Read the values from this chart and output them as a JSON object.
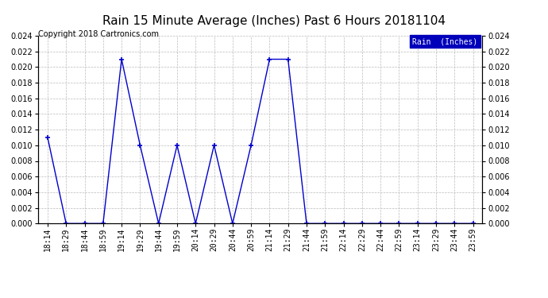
{
  "title": "Rain 15 Minute Average (Inches) Past 6 Hours 20181104",
  "copyright_text": "Copyright 2018 Cartronics.com",
  "legend_label": "Rain  (Inches)",
  "line_color": "#0000cc",
  "legend_bg": "#0000bb",
  "legend_text_color": "#ffffff",
  "background_color": "#ffffff",
  "grid_color": "#bbbbbb",
  "x_labels": [
    "18:14",
    "18:29",
    "18:44",
    "18:59",
    "19:14",
    "19:29",
    "19:44",
    "19:59",
    "20:14",
    "20:29",
    "20:44",
    "20:59",
    "21:14",
    "21:29",
    "21:44",
    "21:59",
    "22:14",
    "22:29",
    "22:44",
    "22:59",
    "23:14",
    "23:29",
    "23:44",
    "23:59"
  ],
  "y_values": [
    0.011,
    0.0,
    0.0,
    0.0,
    0.021,
    0.01,
    0.0,
    0.01,
    0.0,
    0.01,
    0.0,
    0.01,
    0.021,
    0.021,
    0.0,
    0.0,
    0.0,
    0.0,
    0.0,
    0.0,
    0.0,
    0.0,
    0.0,
    0.0
  ],
  "ylim": [
    0.0,
    0.024
  ],
  "yticks": [
    0.0,
    0.002,
    0.004,
    0.006,
    0.008,
    0.01,
    0.012,
    0.014,
    0.016,
    0.018,
    0.02,
    0.022,
    0.024
  ],
  "title_fontsize": 11,
  "copyright_fontsize": 7,
  "tick_fontsize": 7,
  "marker_size": 4,
  "linewidth": 1.0
}
